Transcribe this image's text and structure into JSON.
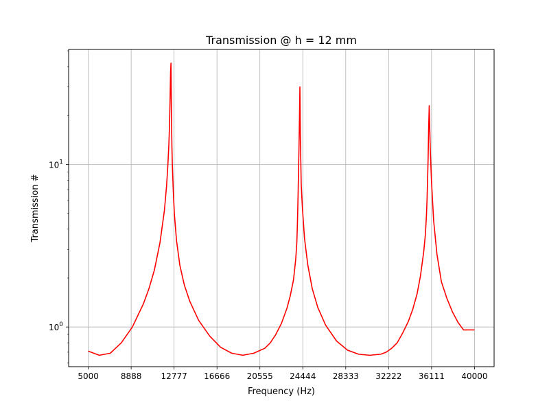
{
  "chart_data": {
    "type": "line",
    "title": "Transmission @ h = 12 mm",
    "xlabel": "Frequency (Hz)",
    "ylabel": "Transmission #",
    "xlim": [
      3222,
      41778
    ],
    "ylim": [
      0.57,
      51
    ],
    "y_scale": "log",
    "grid": true,
    "x_ticks": [
      {
        "value": 5000,
        "label": "5000"
      },
      {
        "value": 8888,
        "label": "8888"
      },
      {
        "value": 12777,
        "label": "12777"
      },
      {
        "value": 16666,
        "label": "16666"
      },
      {
        "value": 20555,
        "label": "20555"
      },
      {
        "value": 24444,
        "label": "24444"
      },
      {
        "value": 28333,
        "label": "28333"
      },
      {
        "value": 32222,
        "label": "32222"
      },
      {
        "value": 36111,
        "label": "36111"
      },
      {
        "value": 40000,
        "label": "40000"
      }
    ],
    "y_ticks": [
      {
        "value": 1,
        "base": "10",
        "exp": "0"
      },
      {
        "value": 10,
        "base": "10",
        "exp": "1"
      }
    ],
    "series": [
      {
        "color": "#ff0000",
        "x": [
          5000,
          6000,
          7000,
          8000,
          9000,
          10000,
          10500,
          11000,
          11500,
          11900,
          12100,
          12200,
          12300,
          12340,
          12380,
          12420,
          12460,
          12500,
          12540,
          12580,
          12620,
          12700,
          12800,
          13000,
          13300,
          13700,
          14200,
          15000,
          16000,
          17000,
          18000,
          19000,
          20000,
          21000,
          21500,
          22000,
          22500,
          23000,
          23300,
          23600,
          23800,
          23900,
          23950,
          24000,
          24050,
          24100,
          24140,
          24180,
          24220,
          24300,
          24400,
          24600,
          24900,
          25300,
          25800,
          26500,
          27500,
          28500,
          29500,
          30500,
          31500,
          32000,
          32500,
          33000,
          33500,
          34000,
          34400,
          34800,
          35100,
          35400,
          35550,
          35650,
          35700,
          35750,
          35800,
          35850,
          35900,
          36000,
          36100,
          36300,
          36600,
          37000,
          37500,
          38000,
          38500,
          39000,
          39500,
          40000
        ],
        "y": [
          0.71,
          0.67,
          0.69,
          0.8,
          1.0,
          1.39,
          1.72,
          2.25,
          3.3,
          5.2,
          7.4,
          9.5,
          13.0,
          15.5,
          19.5,
          26.0,
          37.0,
          42.0,
          20.0,
          13.0,
          10.0,
          7.0,
          5.0,
          3.4,
          2.4,
          1.82,
          1.44,
          1.1,
          0.88,
          0.75,
          0.69,
          0.67,
          0.69,
          0.74,
          0.8,
          0.9,
          1.05,
          1.3,
          1.55,
          1.95,
          2.6,
          3.3,
          4.2,
          5.8,
          8.5,
          13.0,
          19.0,
          30.0,
          15.0,
          7.5,
          5.5,
          3.5,
          2.4,
          1.72,
          1.32,
          1.03,
          0.82,
          0.72,
          0.68,
          0.67,
          0.68,
          0.7,
          0.74,
          0.8,
          0.92,
          1.08,
          1.28,
          1.6,
          2.05,
          2.9,
          3.7,
          4.9,
          6.0,
          8.0,
          11.0,
          17.0,
          23.0,
          12.0,
          8.0,
          4.5,
          2.8,
          1.9,
          1.5,
          1.24,
          1.07,
          0.96,
          0.96,
          0.96
        ]
      }
    ]
  }
}
